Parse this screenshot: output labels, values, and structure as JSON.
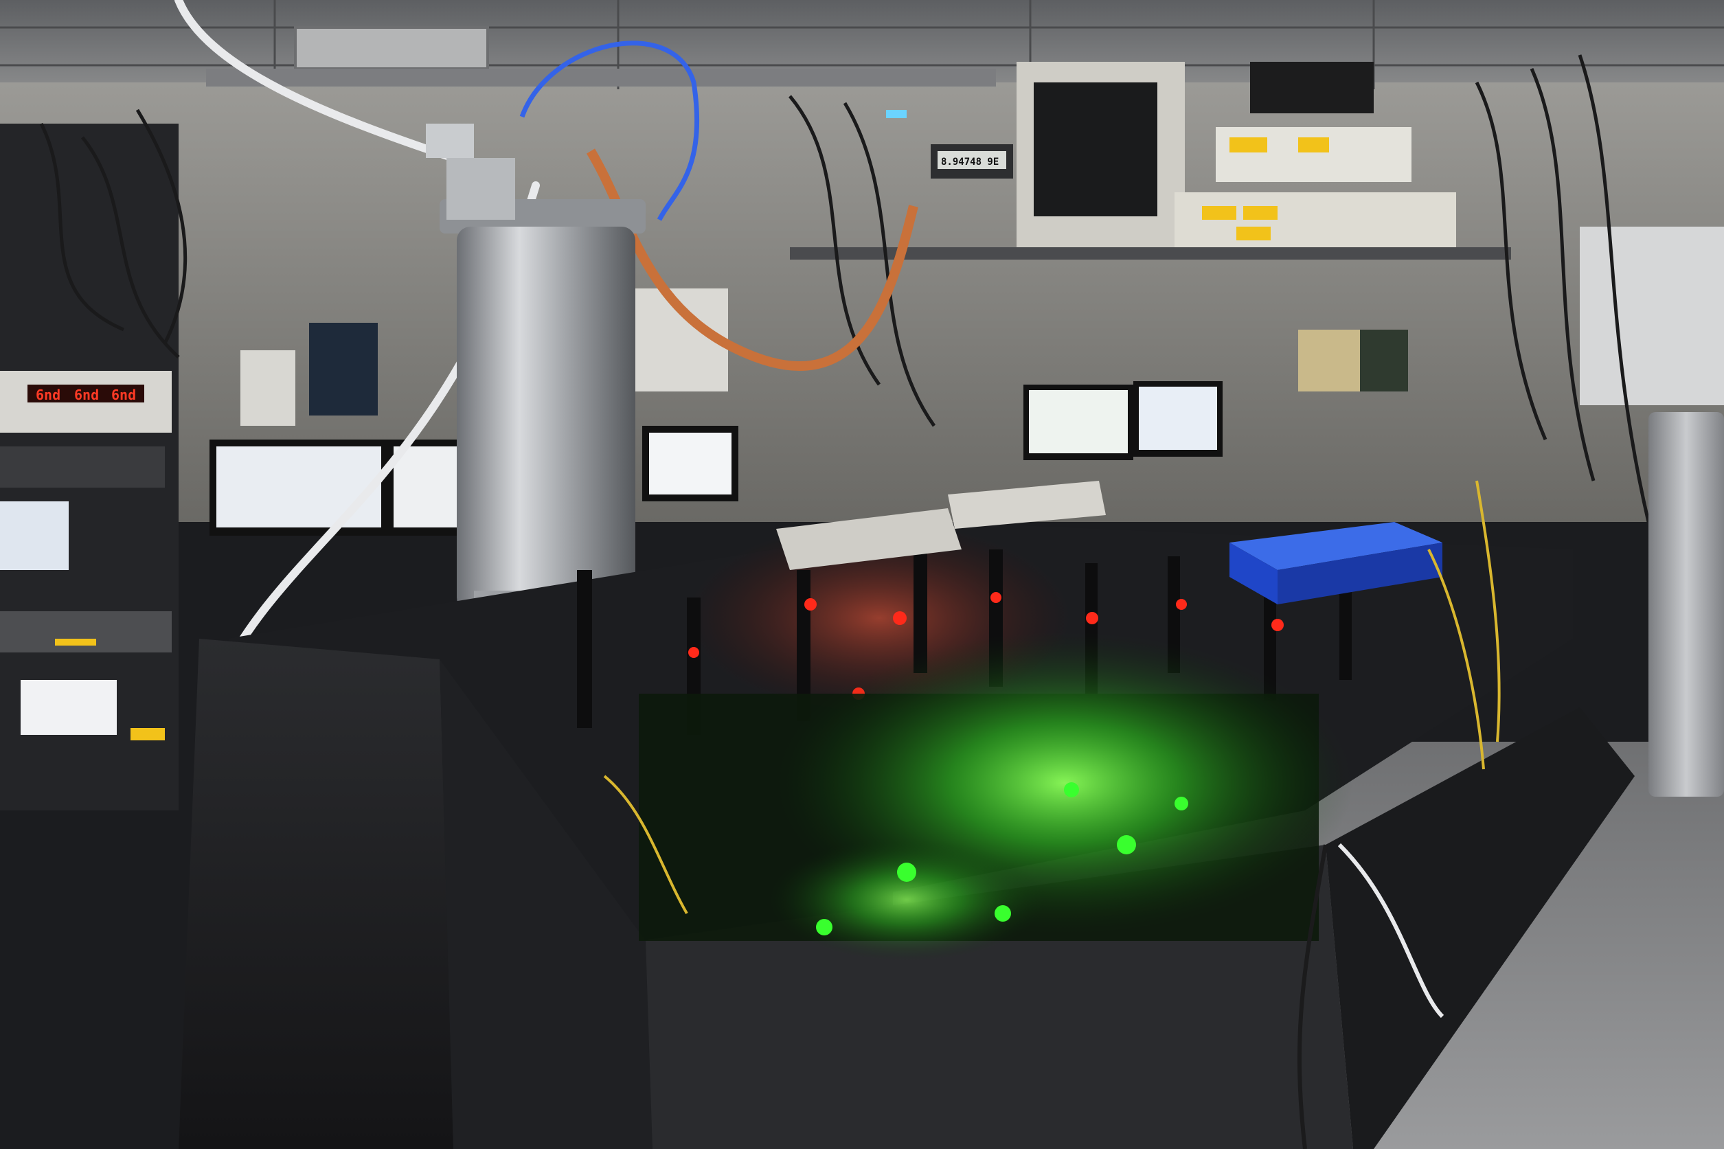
{
  "scene": {
    "kind": "photograph",
    "subject": "optics laboratory"
  },
  "readouts": {
    "left_rack_display": [
      "6nd",
      "6nd",
      "6nd"
    ],
    "meter_display": "8.94748 9E"
  },
  "colors": {
    "laser_green": "#39ff2e",
    "led_red": "#ff2a1a",
    "amber_display": "#f2c21a",
    "blue_box": "#1f46c8",
    "copper_cable": "#c9713a",
    "screen_glow": "#e8eef6"
  }
}
